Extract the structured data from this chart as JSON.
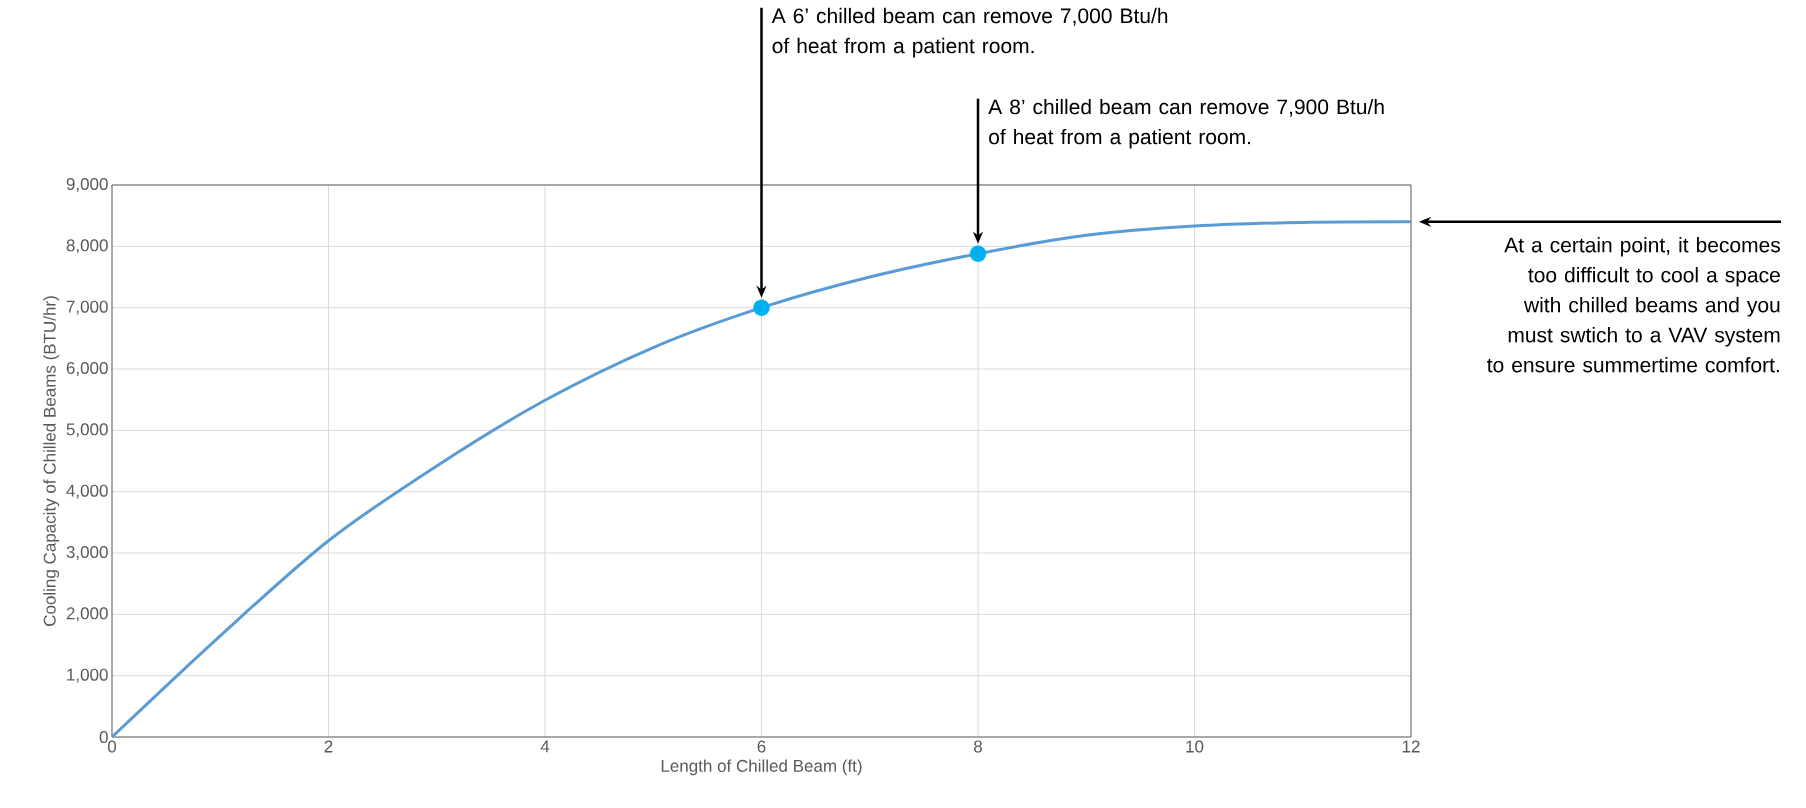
{
  "chart_data": {
    "type": "line",
    "xlabel": "Length of Chilled Beam (ft)",
    "ylabel": "Cooling Capacity of Chilled Beams (BTU/hr)",
    "series": [
      {
        "color": "#5b9bd5",
        "x": [
          0,
          1,
          2,
          3,
          4,
          5,
          6,
          7,
          8,
          9,
          10,
          11,
          12
        ],
        "values": [
          0,
          1650,
          3200,
          4420,
          5490,
          6350,
          7000,
          7500,
          7880,
          8180,
          8330,
          8390,
          8400
        ]
      },
      {
        "type": "scatter",
        "color": "#00b0f0",
        "marker": "circle",
        "x": [
          6,
          8
        ],
        "values": [
          7000,
          7880
        ]
      }
    ],
    "xlim": [
      0,
      12
    ],
    "xticks": [
      0,
      2,
      4,
      6,
      8,
      10,
      12
    ],
    "ylim": [
      0,
      9000
    ],
    "yticks": [
      0,
      {
        "value": 1000,
        "label": "1,000"
      },
      {
        "value": 2000,
        "label": "2,000"
      },
      {
        "value": 3000,
        "label": "3,000"
      },
      {
        "value": 4000,
        "label": "4,000"
      },
      {
        "value": 5000,
        "label": "5,000"
      },
      {
        "value": 6000,
        "label": "6,000"
      },
      {
        "value": 7000,
        "label": "7,000"
      },
      {
        "value": 8000,
        "label": "8,000"
      },
      {
        "value": 9000,
        "label": "9,000"
      }
    ],
    "grid": true,
    "annotations": [
      "A 6’ chilled beam can remove 7,000 Btu/h of heat from a patient room.",
      "A 8’ chilled beam can remove 7,900 Btu/h of heat from a patient room.",
      "At a certain point, it becomes too difficult to cool a space with chilled beams and you must swtich to a VAV system to ensure summertime comfort."
    ]
  }
}
